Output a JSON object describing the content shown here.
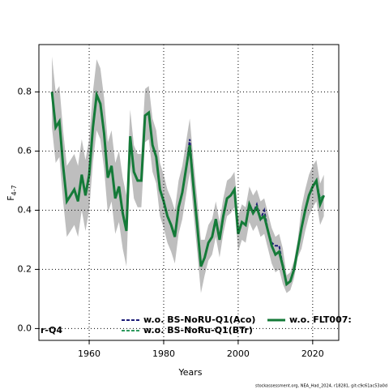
{
  "chart_data": {
    "type": "line",
    "ylabel": "F",
    "ylabel_sub": "4-7",
    "xlabel": "Years",
    "footer": "stockassessment.org, NEA_Had_2024, r18281, git:c9c61ac53a0d",
    "legend_fragment": "r-Q4",
    "x": [
      1950,
      1951,
      1952,
      1953,
      1954,
      1955,
      1956,
      1957,
      1958,
      1959,
      1960,
      1961,
      1962,
      1963,
      1964,
      1965,
      1966,
      1967,
      1968,
      1969,
      1970,
      1971,
      1972,
      1973,
      1974,
      1975,
      1976,
      1977,
      1978,
      1979,
      1980,
      1981,
      1982,
      1983,
      1984,
      1985,
      1986,
      1987,
      1988,
      1989,
      1990,
      1991,
      1992,
      1993,
      1994,
      1995,
      1996,
      1997,
      1998,
      1999,
      2000,
      2001,
      2002,
      2003,
      2004,
      2005,
      2006,
      2007,
      2008,
      2009,
      2010,
      2011,
      2012,
      2013,
      2014,
      2015,
      2016,
      2017,
      2018,
      2019,
      2020,
      2021,
      2022,
      2023
    ],
    "band": {
      "color": "#bebebe",
      "upper": [
        0.92,
        0.8,
        0.82,
        0.67,
        0.55,
        0.57,
        0.59,
        0.55,
        0.64,
        0.57,
        0.64,
        0.8,
        0.91,
        0.88,
        0.78,
        0.63,
        0.67,
        0.56,
        0.6,
        0.51,
        0.45,
        0.74,
        0.62,
        0.59,
        0.59,
        0.81,
        0.82,
        0.71,
        0.67,
        0.56,
        0.52,
        0.47,
        0.44,
        0.4,
        0.5,
        0.55,
        0.63,
        0.71,
        0.57,
        0.44,
        0.3,
        0.3,
        0.35,
        0.37,
        0.43,
        0.36,
        0.44,
        0.5,
        0.51,
        0.53,
        0.38,
        0.42,
        0.41,
        0.48,
        0.45,
        0.47,
        0.43,
        0.44,
        0.39,
        0.34,
        0.31,
        0.32,
        0.27,
        0.18,
        0.19,
        0.23,
        0.3,
        0.41,
        0.47,
        0.52,
        0.55,
        0.57,
        0.49,
        0.52
      ],
      "lower": [
        0.68,
        0.56,
        0.58,
        0.43,
        0.31,
        0.33,
        0.35,
        0.31,
        0.4,
        0.33,
        0.4,
        0.56,
        0.67,
        0.64,
        0.54,
        0.39,
        0.43,
        0.32,
        0.36,
        0.27,
        0.21,
        0.56,
        0.44,
        0.41,
        0.41,
        0.63,
        0.64,
        0.53,
        0.49,
        0.38,
        0.34,
        0.29,
        0.26,
        0.22,
        0.32,
        0.37,
        0.45,
        0.53,
        0.39,
        0.26,
        0.12,
        0.18,
        0.23,
        0.25,
        0.31,
        0.24,
        0.32,
        0.38,
        0.39,
        0.41,
        0.26,
        0.3,
        0.29,
        0.36,
        0.33,
        0.35,
        0.31,
        0.32,
        0.27,
        0.22,
        0.19,
        0.2,
        0.15,
        0.12,
        0.13,
        0.17,
        0.24,
        0.27,
        0.33,
        0.38,
        0.41,
        0.43,
        0.35,
        0.38
      ]
    },
    "series": [
      {
        "name": "w.o. BS-NoRU-Q1(Aco)",
        "color": "#1c1c78",
        "style": "dashed",
        "values": [
          0.8,
          0.68,
          0.7,
          0.55,
          0.43,
          0.45,
          0.47,
          0.43,
          0.52,
          0.45,
          0.52,
          0.68,
          0.79,
          0.76,
          0.66,
          0.51,
          0.55,
          0.44,
          0.48,
          0.39,
          0.33,
          0.65,
          0.53,
          0.5,
          0.5,
          0.72,
          0.73,
          0.62,
          0.58,
          0.47,
          0.43,
          0.38,
          0.35,
          0.31,
          0.41,
          0.46,
          0.54,
          0.64,
          0.48,
          0.35,
          0.21,
          0.24,
          0.29,
          0.31,
          0.37,
          0.3,
          0.38,
          0.44,
          0.45,
          0.47,
          0.32,
          0.36,
          0.35,
          0.42,
          0.39,
          0.42,
          0.37,
          0.4,
          0.33,
          0.29,
          0.28,
          0.28,
          0.21,
          0.15,
          0.16,
          0.2,
          0.27,
          0.34,
          0.4,
          0.45,
          0.48,
          0.5,
          0.42,
          0.45
        ]
      },
      {
        "name": "w.o. BS-NoRu-Q1(BTr)",
        "color": "#2e9a5e",
        "style": "dashed",
        "values": [
          0.8,
          0.68,
          0.7,
          0.55,
          0.43,
          0.45,
          0.47,
          0.43,
          0.52,
          0.45,
          0.52,
          0.68,
          0.79,
          0.76,
          0.66,
          0.51,
          0.55,
          0.44,
          0.48,
          0.39,
          0.33,
          0.65,
          0.53,
          0.5,
          0.5,
          0.72,
          0.73,
          0.62,
          0.58,
          0.47,
          0.43,
          0.38,
          0.35,
          0.31,
          0.41,
          0.46,
          0.54,
          0.62,
          0.48,
          0.35,
          0.21,
          0.24,
          0.29,
          0.31,
          0.37,
          0.3,
          0.38,
          0.44,
          0.45,
          0.47,
          0.32,
          0.36,
          0.35,
          0.42,
          0.39,
          0.41,
          0.37,
          0.38,
          0.33,
          0.28,
          0.25,
          0.26,
          0.21,
          0.15,
          0.16,
          0.2,
          0.27,
          0.34,
          0.4,
          0.45,
          0.48,
          0.5,
          0.44,
          0.45
        ]
      },
      {
        "name": "w.o. FLT007:",
        "color": "#147a38",
        "style": "solid",
        "values": [
          0.8,
          0.68,
          0.7,
          0.55,
          0.43,
          0.45,
          0.47,
          0.43,
          0.52,
          0.45,
          0.52,
          0.68,
          0.79,
          0.76,
          0.66,
          0.51,
          0.55,
          0.44,
          0.48,
          0.39,
          0.33,
          0.65,
          0.53,
          0.5,
          0.5,
          0.72,
          0.73,
          0.62,
          0.58,
          0.47,
          0.43,
          0.38,
          0.35,
          0.31,
          0.41,
          0.46,
          0.54,
          0.62,
          0.48,
          0.35,
          0.21,
          0.24,
          0.29,
          0.31,
          0.37,
          0.3,
          0.38,
          0.44,
          0.45,
          0.47,
          0.32,
          0.36,
          0.35,
          0.42,
          0.39,
          0.41,
          0.37,
          0.38,
          0.33,
          0.28,
          0.25,
          0.26,
          0.21,
          0.15,
          0.16,
          0.2,
          0.27,
          0.34,
          0.4,
          0.45,
          0.48,
          0.5,
          0.42,
          0.45
        ]
      }
    ],
    "xlim": [
      1946.5,
      2027
    ],
    "ylim": [
      -0.04,
      0.96
    ],
    "xticks": [
      1960,
      1980,
      2000,
      2020
    ],
    "yticks": [
      {
        "value": 0,
        "label": "0.0"
      },
      0.2,
      0.4,
      0.6,
      0.8
    ],
    "grid": true
  }
}
